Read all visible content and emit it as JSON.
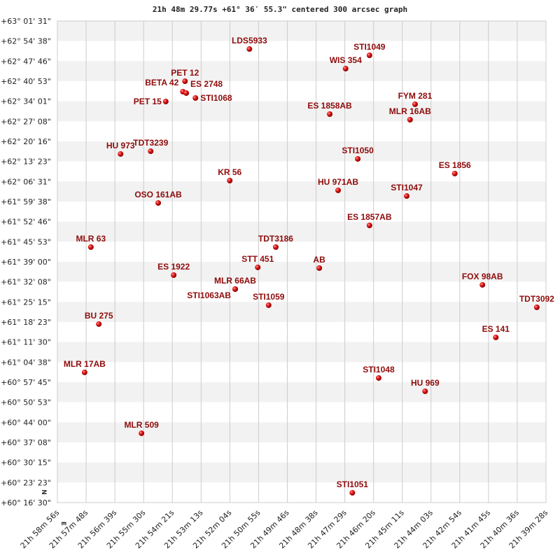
{
  "chart_data": {
    "type": "scatter",
    "title": "21h 48m 29.77s +61° 36′ 55.3\" centered 300 arcsec graph",
    "x_axis": {
      "quantity": "right ascension",
      "reversed": true,
      "range": [
        "21h58m56s",
        "21h39m28s"
      ],
      "tick_labels": [
        "21h 58m 56s",
        "21h 57m 48s",
        "21h 56m 39s",
        "21h 55m 30s",
        "21h 54m 21s",
        "21h 53m 13s",
        "21h 52m 04s",
        "21h 50m 55s",
        "21h 49m 46s",
        "21h 48m 38s",
        "21h 47m 29s",
        "21h 46m 20s",
        "21h 45m 11s",
        "21h 44m 03s",
        "21h 42m 54s",
        "21h 41m 45s",
        "21h 40m 36s",
        "21h 39m 28s"
      ]
    },
    "y_axis": {
      "quantity": "declination",
      "range": [
        "+60°16'30\"",
        "+63°01'31\""
      ],
      "tick_labels": [
        "+63° 01' 31\"",
        "+62° 54' 38\"",
        "+62° 47' 46\"",
        "+62° 40' 53\"",
        "+62° 34' 01\"",
        "+62° 27' 08\"",
        "+62° 20' 16\"",
        "+62° 13' 23\"",
        "+62° 06' 31\"",
        "+61° 59' 38\"",
        "+61° 52' 46\"",
        "+61° 45' 53\"",
        "+61° 39' 00\"",
        "+61° 32' 08\"",
        "+61° 25' 15\"",
        "+61° 18' 23\"",
        "+61° 11' 30\"",
        "+61° 04' 38\"",
        "+60° 57' 45\"",
        "+60° 50' 53\"",
        "+60° 44' 00\"",
        "+60° 37' 08\"",
        "+60° 30' 15\"",
        "+60° 23' 23\"",
        "+60° 16' 30\""
      ]
    },
    "grid": true,
    "alternating_bands": true,
    "compass": {
      "north": "N",
      "east": "E"
    },
    "colors": {
      "point": "#d01010",
      "label": "#8f0a0a",
      "band": "#f2f2f2",
      "grid": "#cccccc"
    },
    "points": [
      {
        "name": "LDS5933",
        "ra": "21h51m17s",
        "dec": "+62°51'55\""
      },
      {
        "name": "STI1049",
        "ra": "21h46m30s",
        "dec": "+62°49'46\""
      },
      {
        "name": "WIS 354",
        "ra": "21h47m27s",
        "dec": "+62°45'12\""
      },
      {
        "name": "PET  12",
        "ra": "21h53m51s",
        "dec": "+62°40'53\""
      },
      {
        "name": "BETA 42",
        "ra": "21h53m56s",
        "dec": "+62°37'18\""
      },
      {
        "name": "ES 2748",
        "ra": "21h53m48s",
        "dec": "+62°36'49\""
      },
      {
        "name": "STI1068",
        "ra": "21h53m26s",
        "dec": "+62°35'08\""
      },
      {
        "name": "PET  15",
        "ra": "21h54m37s",
        "dec": "+62°33'56\""
      },
      {
        "name": "FYM 281",
        "ra": "21h44m41s",
        "dec": "+62°32'59\""
      },
      {
        "name": "ES 1858AB",
        "ra": "21h48m05s",
        "dec": "+62°29'37\""
      },
      {
        "name": "MLR  16AB",
        "ra": "21h44m53s",
        "dec": "+62°27'42\""
      },
      {
        "name": "HU  973",
        "ra": "21h56m25s",
        "dec": "+62°15'57\""
      },
      {
        "name": "TDT3239",
        "ra": "21h55m13s",
        "dec": "+62°16'54\""
      },
      {
        "name": "STI1050",
        "ra": "21h46m58s",
        "dec": "+62°14'16\""
      },
      {
        "name": "ES 1856",
        "ra": "21h43m06s",
        "dec": "+62°09'14\""
      },
      {
        "name": "KR  56",
        "ra": "21h52m04s",
        "dec": "+62°06'50\""
      },
      {
        "name": "HU  971AB",
        "ra": "21h47m45s",
        "dec": "+62°03'29\""
      },
      {
        "name": "STI1047",
        "ra": "21h45m01s",
        "dec": "+62°01'33\""
      },
      {
        "name": "OSO 161AB",
        "ra": "21h54m55s",
        "dec": "+61°59'10\""
      },
      {
        "name": "ES 1857AB",
        "ra": "21h46m30s",
        "dec": "+61°51'29\""
      },
      {
        "name": "MLR  63",
        "ra": "21h57m36s",
        "dec": "+61°44'03\""
      },
      {
        "name": "TDT3186",
        "ra": "21h50m14s",
        "dec": "+61°44'03\""
      },
      {
        "name": "STT 451",
        "ra": "21h50m57s",
        "dec": "+61°37'06\""
      },
      {
        "name": "AB",
        "ra": "21h48m30s",
        "dec": "+61°36'51\""
      },
      {
        "name": "ES 1922",
        "ra": "21h54m18s",
        "dec": "+61°34'27\""
      },
      {
        "name": "FOX  98AB",
        "ra": "21h42m00s",
        "dec": "+61°31'06\""
      },
      {
        "name": "MLR  66AB",
        "ra": "21h51m51s",
        "dec": "+61°29'40\""
      },
      {
        "name": "STI1063AB",
        "ra": "21h51m51s",
        "dec": "+61°29'40\""
      },
      {
        "name": "STI1059",
        "ra": "21h50m31s",
        "dec": "+61°24'09\""
      },
      {
        "name": "TDT3092",
        "ra": "21h39m50s",
        "dec": "+61°23'25\""
      },
      {
        "name": "BU  275",
        "ra": "21h57m17s",
        "dec": "+61°17'40\""
      },
      {
        "name": "ES  141",
        "ra": "21h41m28s",
        "dec": "+61°13'07\""
      },
      {
        "name": "MLR  17AB",
        "ra": "21h57m51s",
        "dec": "+61°01'07\""
      },
      {
        "name": "STI1048",
        "ra": "21h46m08s",
        "dec": "+60°59'12\""
      },
      {
        "name": "HU  969",
        "ra": "21h44m17s",
        "dec": "+60°54'39\""
      },
      {
        "name": "MLR 509",
        "ra": "21h55m35s",
        "dec": "+60°40'15\""
      },
      {
        "name": "STI1051",
        "ra": "21h47m11s",
        "dec": "+60°19'52\""
      }
    ]
  }
}
